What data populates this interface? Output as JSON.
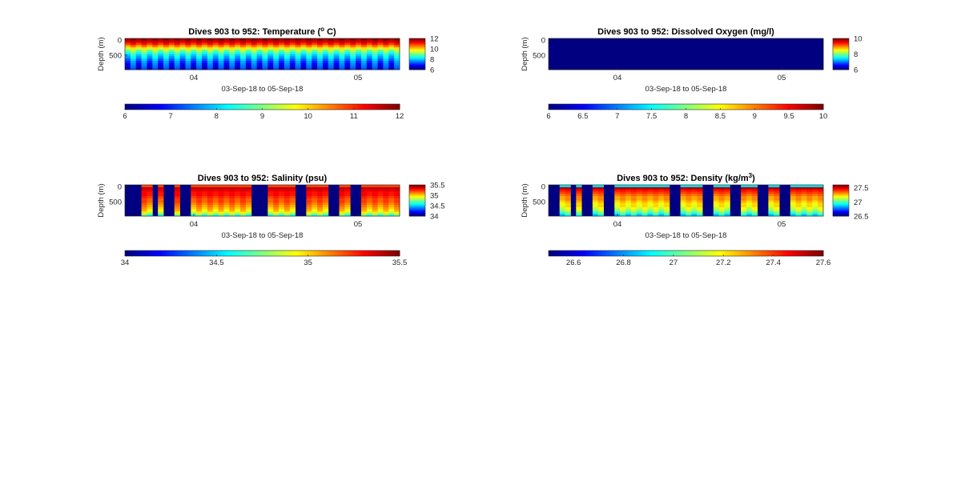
{
  "colors": {
    "low": "#00008f",
    "mid": "#7fff7f",
    "high": "#800000",
    "axis": "#262626"
  },
  "chart_data": [
    {
      "type": "heatmap",
      "title": "Dives 903 to 952: Temperature (",
      "title_sup": "o",
      "title_end": " C)",
      "ylabel": "Depth (m)",
      "xlabel": "03-Sep-18 to 05-Sep-18",
      "x_ticks": [
        "04",
        "05"
      ],
      "y_ticks": [
        "0",
        "500"
      ],
      "clim": [
        6,
        12
      ],
      "side_colorbar_ticks": [
        "12",
        "10",
        "8",
        "6"
      ],
      "bottom_colorbar_ticks": [
        "6",
        "7",
        "8",
        "9",
        "10",
        "11",
        "12"
      ],
      "profiles": 50,
      "depth_profile": [
        11.8,
        11.5,
        11.0,
        10.3,
        9.6,
        9.0,
        8.5,
        8.1,
        7.8,
        7.5,
        7.2,
        7.0,
        6.8,
        6.6
      ]
    },
    {
      "type": "heatmap",
      "title": "Dives 903 to 952: Dissolved Oxygen (mg/l)",
      "ylabel": "Depth (m)",
      "xlabel": "03-Sep-18 to 05-Sep-18",
      "x_ticks": [
        "04",
        "05"
      ],
      "y_ticks": [
        "0",
        "500"
      ],
      "clim": [
        6,
        10
      ],
      "side_colorbar_ticks": [
        "10",
        "8",
        "6"
      ],
      "bottom_colorbar_ticks": [
        "6",
        "6.5",
        "7",
        "7.5",
        "8",
        "8.5",
        "9",
        "9.5",
        "10"
      ],
      "profiles": 50,
      "depth_profile": [
        6,
        6,
        6,
        6,
        6,
        6,
        6,
        6,
        6,
        6,
        6,
        6,
        6,
        6
      ]
    },
    {
      "type": "heatmap",
      "title": "Dives 903 to 952: Salinity (psu)",
      "ylabel": "Depth (m)",
      "xlabel": "03-Sep-18 to 05-Sep-18",
      "x_ticks": [
        "04",
        "05"
      ],
      "y_ticks": [
        "0",
        "500"
      ],
      "clim": [
        34,
        35.5
      ],
      "side_colorbar_ticks": [
        "35.5",
        "35",
        "34.5",
        "34"
      ],
      "bottom_colorbar_ticks": [
        "34",
        "34.5",
        "35",
        "35.5"
      ],
      "profiles": 50,
      "depth_profile": [
        35.2,
        35.4,
        35.35,
        35.3,
        35.3,
        35.25,
        35.2,
        35.2,
        35.15,
        35.1,
        35.05,
        35.0,
        34.9,
        34.7
      ]
    },
    {
      "type": "heatmap",
      "title": "Dives 903 to 952: Density (kg/m",
      "title_sup": "3",
      "title_end": ")",
      "ylabel": "Depth (m)",
      "xlabel": "03-Sep-18 to 05-Sep-18",
      "x_ticks": [
        "04",
        "05"
      ],
      "y_ticks": [
        "0",
        "500"
      ],
      "clim": [
        26.5,
        27.6
      ],
      "side_colorbar_ticks": [
        "27.5",
        "27",
        "26.5"
      ],
      "bottom_colorbar_ticks": [
        "26.6",
        "26.8",
        "27",
        "27.2",
        "27.4",
        "27.6"
      ],
      "profiles": 50,
      "depth_profile": [
        26.9,
        27.55,
        27.45,
        27.4,
        27.35,
        27.3,
        27.3,
        27.25,
        27.2,
        27.2,
        27.15,
        27.1,
        27.0,
        26.9
      ]
    }
  ]
}
